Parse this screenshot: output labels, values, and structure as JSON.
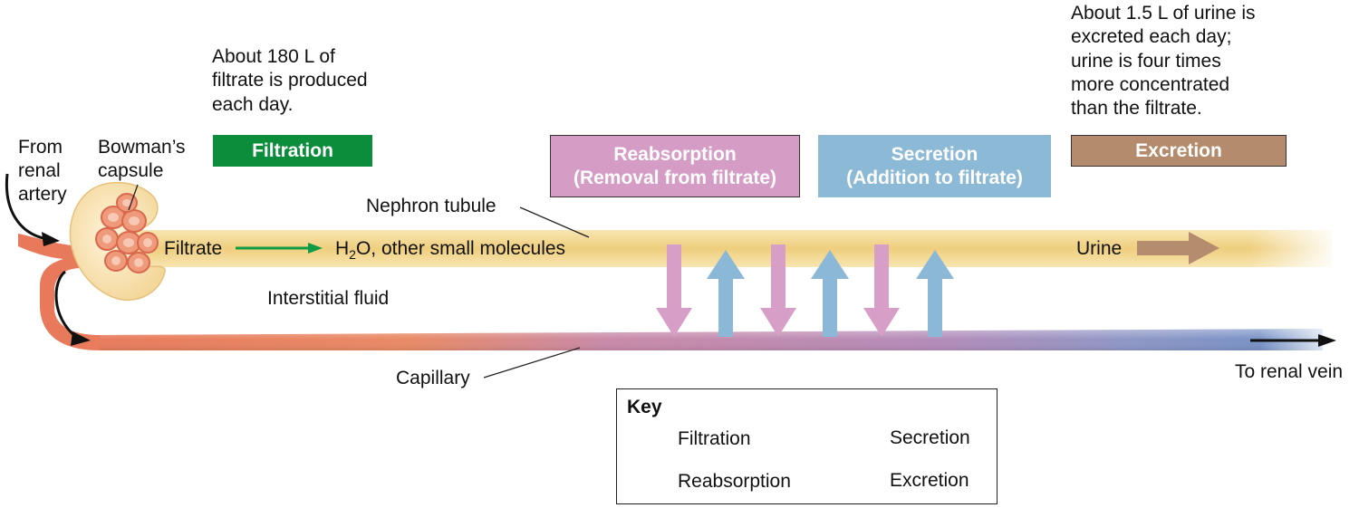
{
  "notes": {
    "filtrate": [
      "About 180 L of",
      "filtrate is produced",
      "each day."
    ],
    "urine": [
      "About 1.5 L of urine is",
      "excreted each day;",
      "urine is four times",
      "more concentrated",
      "than the filtrate."
    ]
  },
  "stages": {
    "filtration": "Filtration",
    "reabsorption": [
      "Reabsorption",
      "(Removal from filtrate)"
    ],
    "secretion": [
      "Secretion",
      "(Addition to filtrate)"
    ],
    "excretion": "Excretion"
  },
  "labels": {
    "from_artery": [
      "From",
      "renal",
      "artery"
    ],
    "bowmans": [
      "Bowman’s",
      "capsule"
    ],
    "nephron_tubule": "Nephron tubule",
    "filtrate": "Filtrate",
    "h2o_h": "H",
    "h2o_sub": "2",
    "h2o_rest": "O, other small molecules",
    "urine": "Urine",
    "interstitial": "Interstitial fluid",
    "capillary": "Capillary",
    "renal_vein": "To renal vein"
  },
  "key": {
    "title": "Key",
    "filtration": "Filtration",
    "secretion": "Secretion",
    "reabsorption": "Reabsorption",
    "excretion": "Excretion"
  },
  "colors": {
    "filtration": "#0b8d3c",
    "reabsorption": "#d59dc6",
    "secretion": "#8cb9d6",
    "excretion": "#b48b6c",
    "tubule": "#f1d48a",
    "artery": "#e57a5c",
    "vein": "#6f8fc4"
  }
}
